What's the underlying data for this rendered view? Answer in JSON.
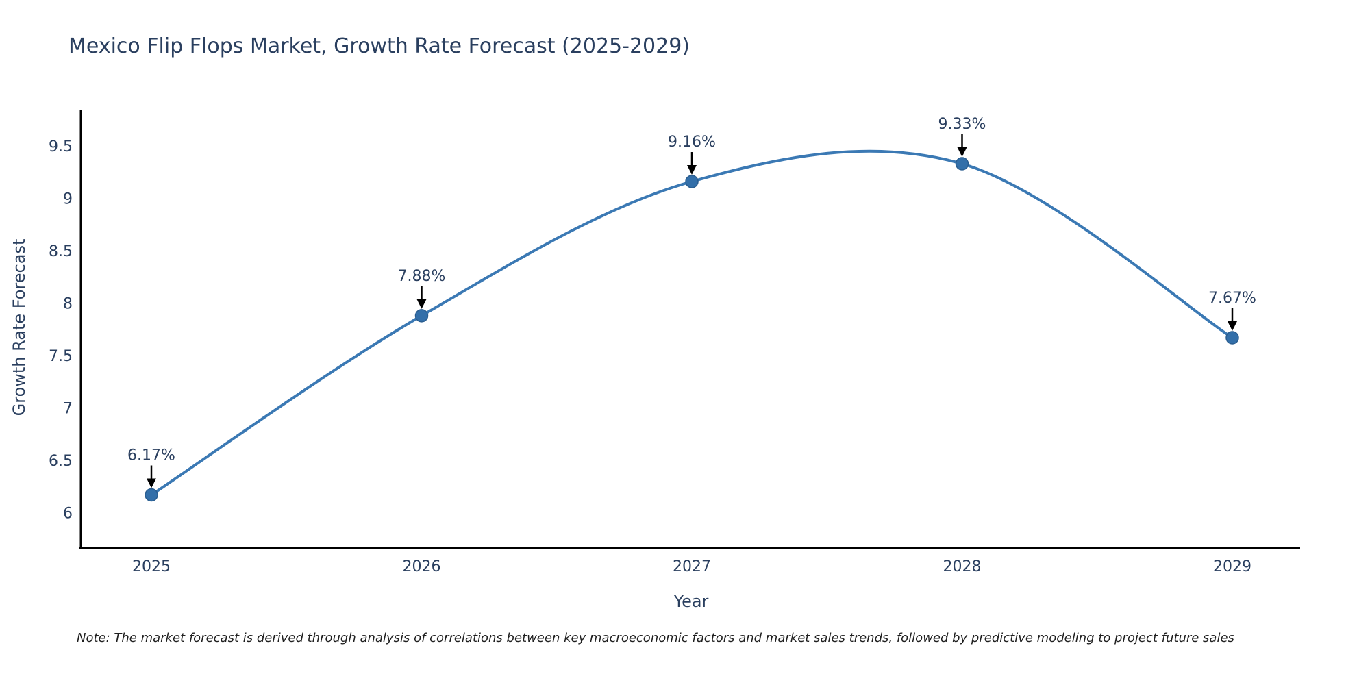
{
  "chart_data": {
    "type": "line",
    "title": "Mexico Flip Flops Market, Growth Rate Forecast (2025-2029)",
    "xlabel": "Year",
    "ylabel": "Growth Rate Forecast",
    "x": [
      "2025",
      "2026",
      "2027",
      "2028",
      "2029"
    ],
    "series": [
      {
        "name": "Growth Rate Forecast",
        "values": [
          6.17,
          7.88,
          9.16,
          9.33,
          7.67
        ]
      }
    ],
    "point_labels": [
      "6.17%",
      "7.88%",
      "9.16%",
      "9.33%",
      "7.67%"
    ],
    "ytick_labels": [
      "6",
      "6.5",
      "7",
      "7.5",
      "8",
      "8.5",
      "9",
      "9.5"
    ],
    "ytick_values": [
      6,
      6.5,
      7,
      7.5,
      8,
      8.5,
      9,
      9.5
    ],
    "ylim": [
      5.66,
      9.86
    ],
    "grid": false,
    "legend_position": "none",
    "line_shape": "spline",
    "colors": {
      "line": "#3b79b4",
      "marker": "#336fa9",
      "marker_edge": "#2a5d8f",
      "axis": "#000000",
      "text": "#2a3f5f",
      "annotation_arrow": "#000000"
    }
  },
  "footnote": {
    "text": "Note: The market forecast is derived through analysis of correlations between key macroeconomic factors and market sales trends, followed by predictive modeling to project future sales"
  }
}
